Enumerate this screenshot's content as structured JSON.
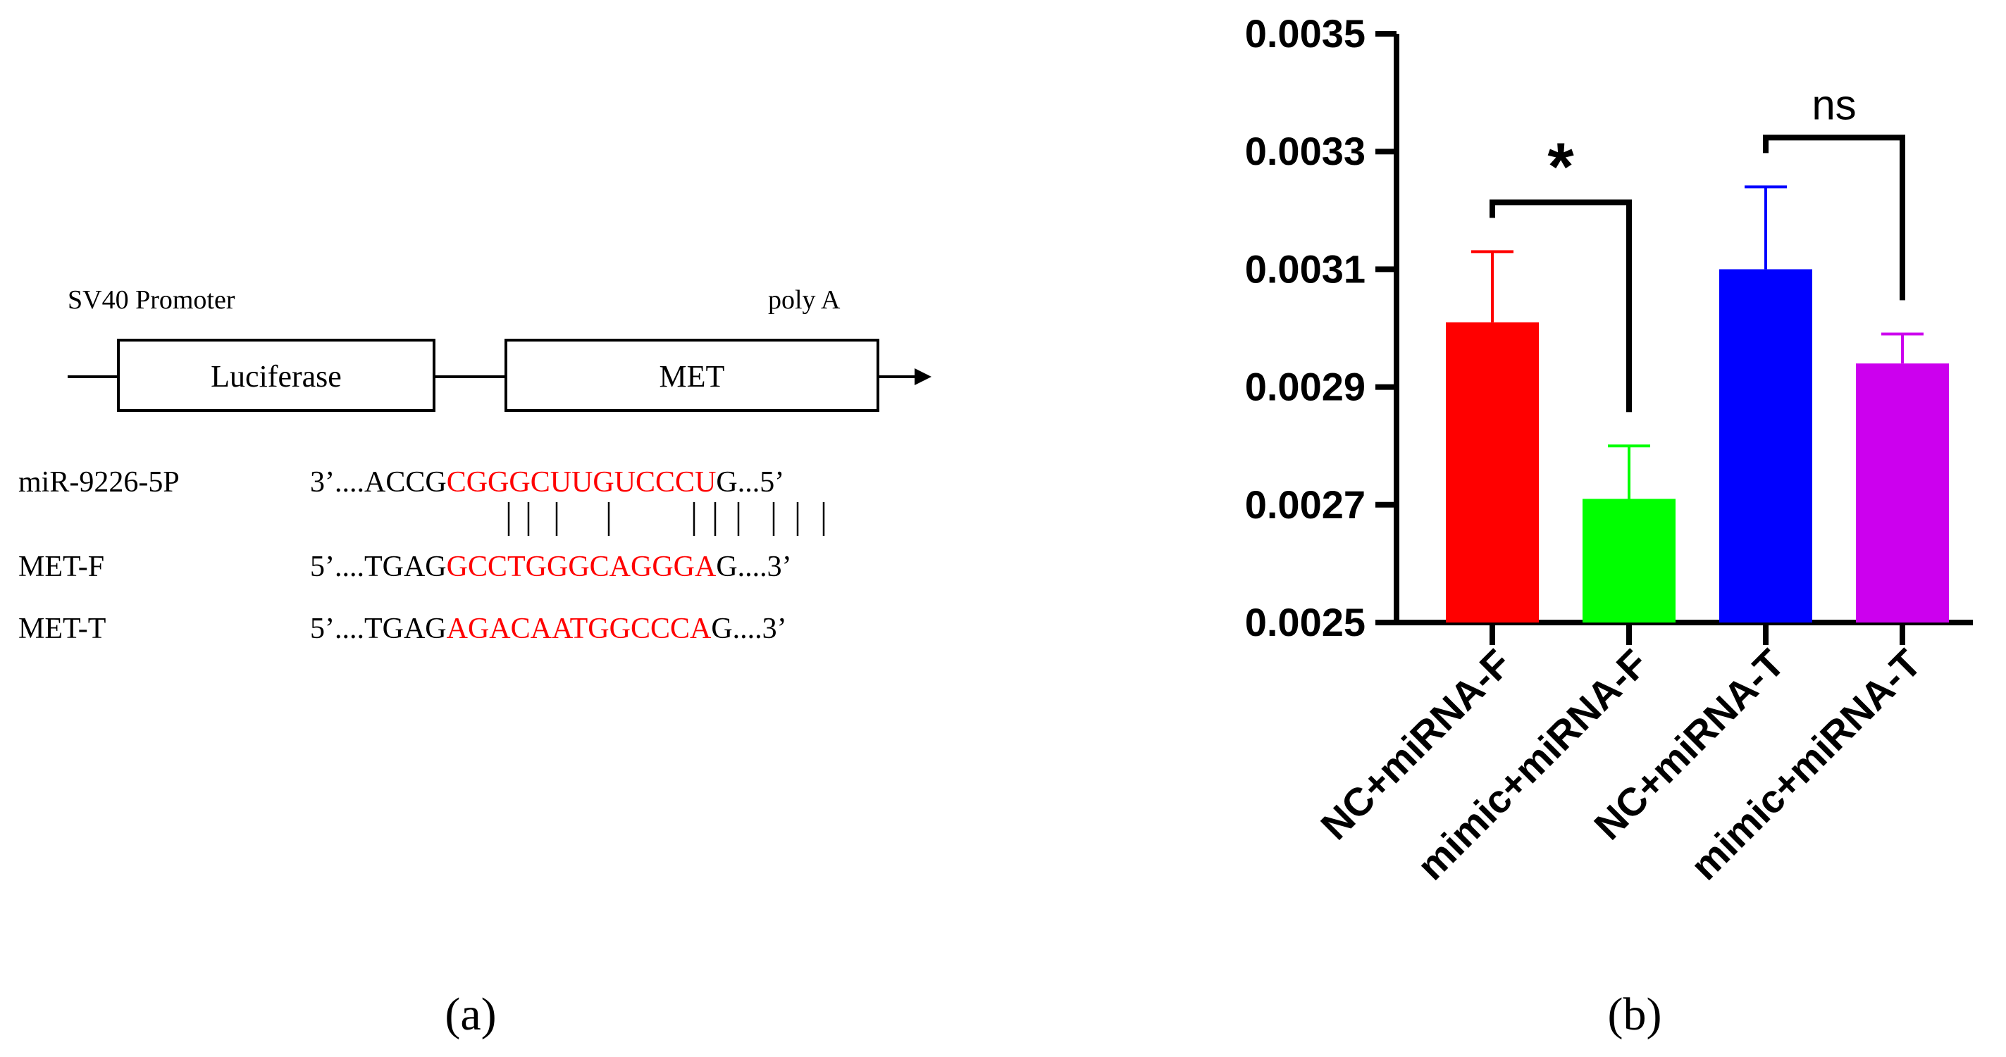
{
  "panel_a": {
    "label": "(a)",
    "construct": {
      "promoter_label": "SV40 Promoter",
      "polya_label": "poly A",
      "box1_label": "Luciferase",
      "box2_label": "MET"
    },
    "alignment": {
      "rows": [
        {
          "name": "miR-9226-5P",
          "prefix": "3’....ACCG",
          "core": "CGGGCUUGUCCCU",
          "suffix": "G...5’"
        },
        {
          "name": "MET-F",
          "prefix": "5’....TGAG",
          "core": "GCCTGGGCAGGGA",
          "suffix": "G....3’"
        },
        {
          "name": "MET-T",
          "prefix": "5’....TGAG",
          "core": "AGACAATGGCCCA",
          "suffix": "G....3’"
        }
      ],
      "pair_marks": "||| |  ||||||",
      "core_color": "#ff0000"
    }
  },
  "panel_b": {
    "label": "(b)",
    "chart_data": {
      "type": "bar",
      "categories": [
        "NC+miRNA-F",
        "mimic+miRNA-F",
        "NC+miRNA-T",
        "mimic+miRNA-T"
      ],
      "values": [
        0.00301,
        0.00271,
        0.0031,
        0.00294
      ],
      "errors": [
        0.00012,
        9e-05,
        0.00014,
        5e-05
      ],
      "colors": [
        "#ff0000",
        "#00ff00",
        "#0000ff",
        "#cc00ee"
      ],
      "ylim": [
        0.0025,
        0.0035
      ],
      "yticks": [
        "0.0025",
        "0.0027",
        "0.0029",
        "0.0031",
        "0.0033",
        "0.0035"
      ],
      "significance": [
        {
          "pair": [
            0,
            1
          ],
          "label": "*"
        },
        {
          "pair": [
            2,
            3
          ],
          "label": "ns"
        }
      ]
    }
  }
}
